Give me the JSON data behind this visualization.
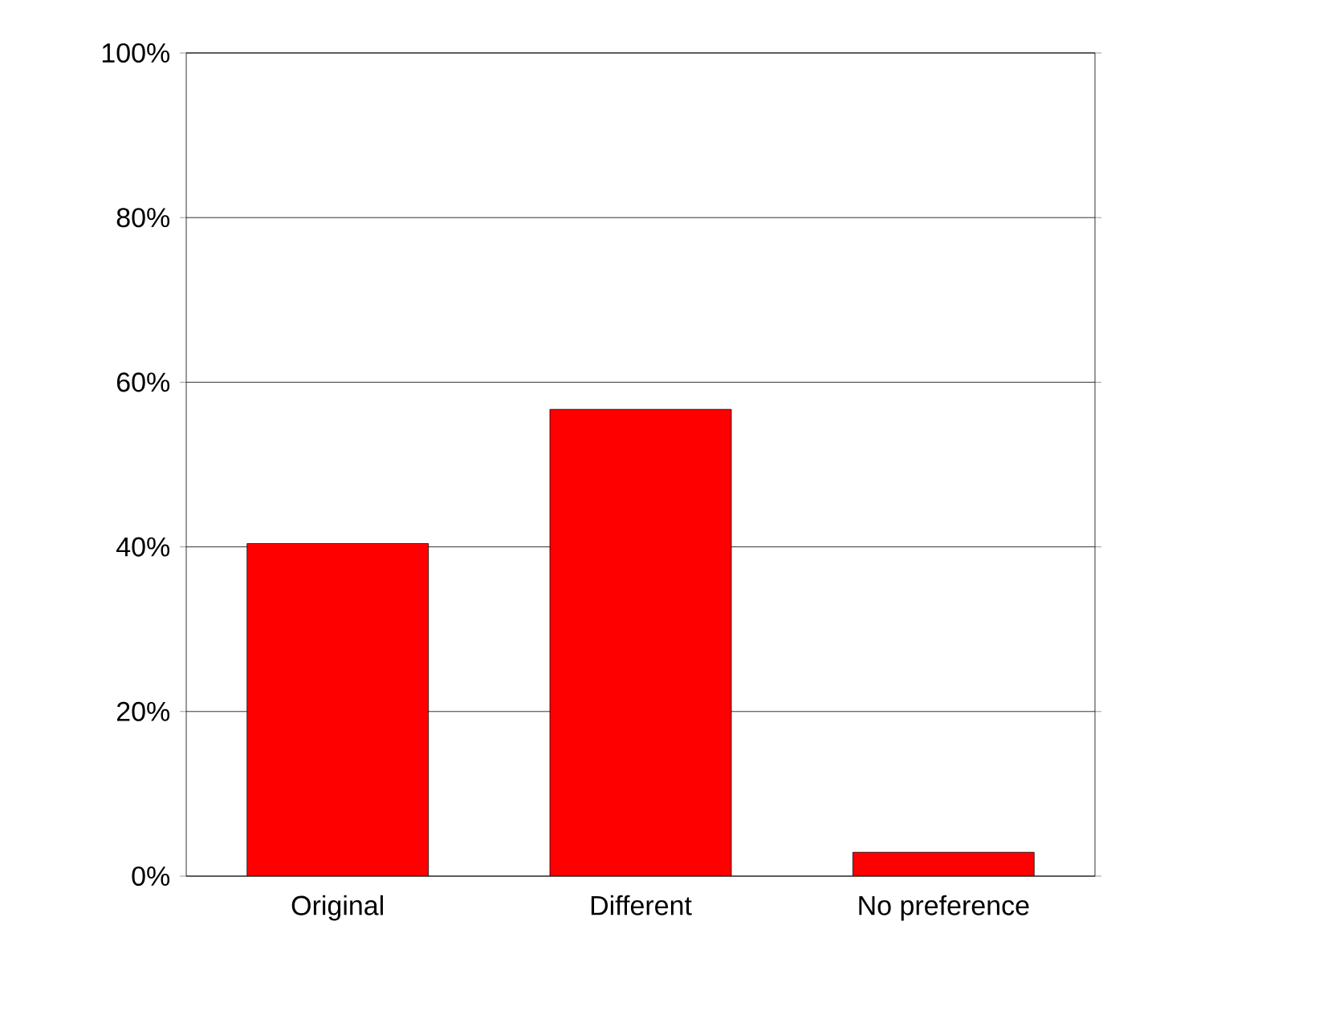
{
  "chart_data": {
    "type": "bar",
    "categories": [
      "Original",
      "Different",
      "No preference"
    ],
    "values": [
      40.4,
      56.7,
      2.9
    ],
    "color": "#ff0000",
    "ylim": [
      0,
      100
    ],
    "yticks": [
      {
        "value": 0,
        "label": "0%"
      },
      {
        "value": 20,
        "label": "20%"
      },
      {
        "value": 40,
        "label": "40%"
      },
      {
        "value": 60,
        "label": "60%"
      },
      {
        "value": 80,
        "label": "80%"
      },
      {
        "value": 100,
        "label": "100%"
      }
    ],
    "grid": "y"
  }
}
